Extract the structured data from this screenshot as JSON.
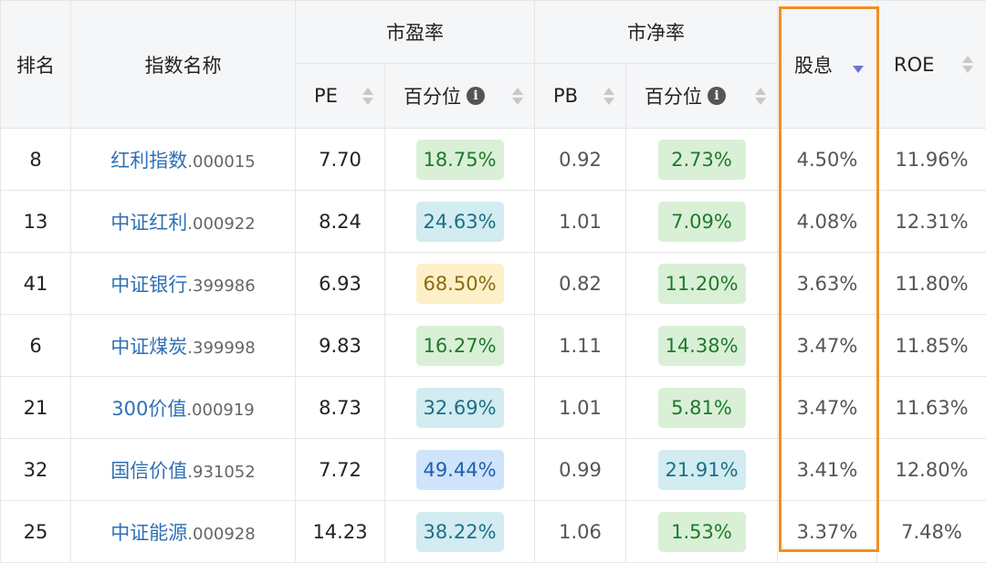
{
  "header": {
    "rank": "排名",
    "index_name": "指数名称",
    "pe_group": "市盈率",
    "pb_group": "市净率",
    "dividend": "股息",
    "roe": "ROE",
    "pe": "PE",
    "pe_pct": "百分位",
    "pb": "PB",
    "pb_pct": "百分位",
    "info_glyph": "i"
  },
  "pill_colors": {
    "green": {
      "bg": "#d9f0d7",
      "fg": "#1e7a2b"
    },
    "teal": {
      "bg": "#d2ecf1",
      "fg": "#1d6f86"
    },
    "yellow": {
      "bg": "#fdf0c8",
      "fg": "#8a6a10"
    },
    "blue": {
      "bg": "#cfe3fb",
      "fg": "#1f5fae"
    }
  },
  "rows": [
    {
      "rank": "8",
      "name": "红利指数",
      "code": ".000015",
      "pe": "7.70",
      "pe_pct": "18.75%",
      "pe_color": "green",
      "pb": "0.92",
      "pb_pct": "2.73%",
      "pb_color": "green",
      "dividend": "4.50%",
      "roe": "11.96%"
    },
    {
      "rank": "13",
      "name": "中证红利",
      "code": ".000922",
      "pe": "8.24",
      "pe_pct": "24.63%",
      "pe_color": "teal",
      "pb": "1.01",
      "pb_pct": "7.09%",
      "pb_color": "green",
      "dividend": "4.08%",
      "roe": "12.31%"
    },
    {
      "rank": "41",
      "name": "中证银行",
      "code": ".399986",
      "pe": "6.93",
      "pe_pct": "68.50%",
      "pe_color": "yellow",
      "pb": "0.82",
      "pb_pct": "11.20%",
      "pb_color": "green",
      "dividend": "3.63%",
      "roe": "11.80%"
    },
    {
      "rank": "6",
      "name": "中证煤炭",
      "code": ".399998",
      "pe": "9.83",
      "pe_pct": "16.27%",
      "pe_color": "green",
      "pb": "1.11",
      "pb_pct": "14.38%",
      "pb_color": "green",
      "dividend": "3.47%",
      "roe": "11.85%"
    },
    {
      "rank": "21",
      "name": "300价值",
      "code": ".000919",
      "pe": "8.73",
      "pe_pct": "32.69%",
      "pe_color": "teal",
      "pb": "1.01",
      "pb_pct": "5.81%",
      "pb_color": "green",
      "dividend": "3.47%",
      "roe": "11.63%"
    },
    {
      "rank": "32",
      "name": "国信价值",
      "code": ".931052",
      "pe": "7.72",
      "pe_pct": "49.44%",
      "pe_color": "blue",
      "pb": "0.99",
      "pb_pct": "21.91%",
      "pb_color": "teal",
      "dividend": "3.41%",
      "roe": "12.80%"
    },
    {
      "rank": "25",
      "name": "中证能源",
      "code": ".000928",
      "pe": "14.23",
      "pe_pct": "38.22%",
      "pe_color": "teal",
      "pb": "1.06",
      "pb_pct": "1.53%",
      "pb_color": "green",
      "dividend": "3.37%",
      "roe": "7.48%"
    }
  ]
}
